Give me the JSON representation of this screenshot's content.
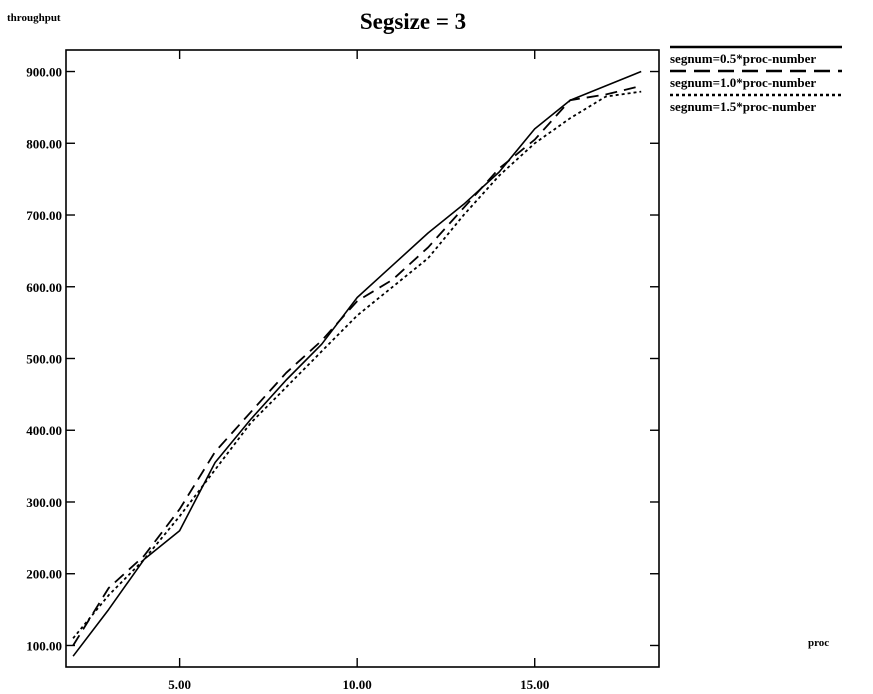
{
  "chart_data": {
    "type": "line",
    "title": "Segsize = 3",
    "xlabel": "proc",
    "ylabel": "throughput",
    "xlim": [
      1.8,
      18.5
    ],
    "ylim": [
      70,
      930
    ],
    "x_ticks": [
      5,
      10,
      15
    ],
    "x_tick_labels": [
      "5.00",
      "10.00",
      "15.00"
    ],
    "y_ticks": [
      100,
      200,
      300,
      400,
      500,
      600,
      700,
      800,
      900
    ],
    "y_tick_labels": [
      "100.00",
      "200.00",
      "300.00",
      "400.00",
      "500.00",
      "600.00",
      "700.00",
      "800.00",
      "900.00"
    ],
    "grid": false,
    "legend_position": "top-right outside",
    "series": [
      {
        "name": "segnum=0.5*proc-number",
        "style": "solid",
        "x": [
          2,
          3,
          4,
          5,
          6,
          7,
          8,
          9,
          10,
          11,
          12,
          13,
          14,
          15,
          16,
          17,
          18
        ],
        "y": [
          85,
          150,
          220,
          260,
          355,
          415,
          470,
          520,
          585,
          630,
          675,
          715,
          760,
          820,
          860,
          880,
          900
        ]
      },
      {
        "name": "segnum=1.0*proc-number",
        "style": "dashed",
        "x": [
          2,
          3,
          4,
          5,
          6,
          7,
          8,
          9,
          10,
          11,
          12,
          13,
          14,
          15,
          16,
          17,
          18
        ],
        "y": [
          100,
          180,
          225,
          290,
          370,
          425,
          480,
          525,
          580,
          610,
          655,
          710,
          765,
          805,
          860,
          868,
          880
        ]
      },
      {
        "name": "segnum=1.5*proc-number",
        "style": "dotted",
        "x": [
          2,
          3,
          4,
          5,
          6,
          7,
          8,
          9,
          10,
          11,
          12,
          13,
          14,
          15,
          16,
          17,
          18
        ],
        "y": [
          110,
          170,
          220,
          280,
          345,
          410,
          460,
          510,
          560,
          600,
          640,
          700,
          755,
          800,
          835,
          865,
          872
        ]
      }
    ]
  }
}
